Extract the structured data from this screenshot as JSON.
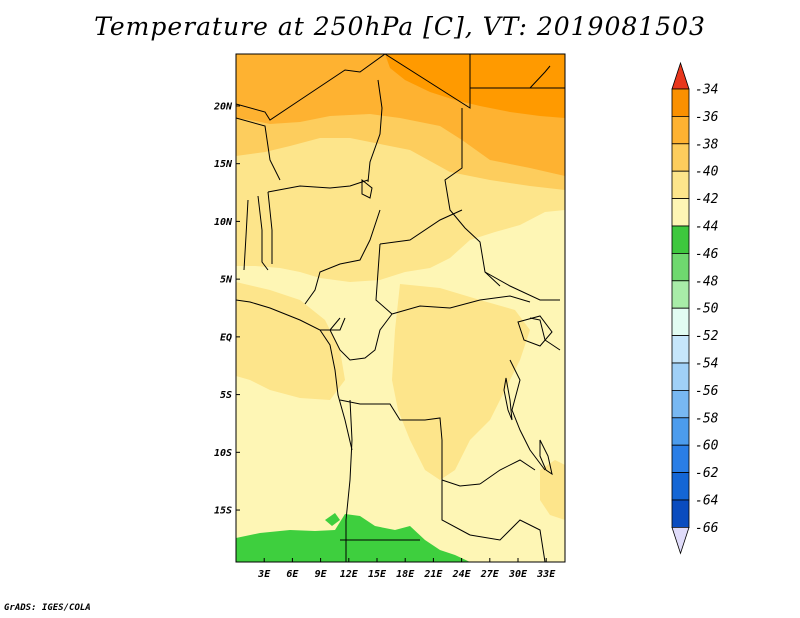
{
  "title": "Temperature at 250hPa [C], VT: 2019081503",
  "credit": "GrADS: IGES/COLA",
  "map": {
    "lon_range": [
      0,
      35
    ],
    "lat_range": [
      -19.5,
      24.5
    ],
    "lat_ticks": [
      {
        "lat": 20,
        "label": "20N"
      },
      {
        "lat": 15,
        "label": "15N"
      },
      {
        "lat": 10,
        "label": "10N"
      },
      {
        "lat": 5,
        "label": "5N"
      },
      {
        "lat": 0,
        "label": "EQ"
      },
      {
        "lat": -5,
        "label": "5S"
      },
      {
        "lat": -10,
        "label": "10S"
      },
      {
        "lat": -15,
        "label": "15S"
      }
    ],
    "lon_ticks": [
      {
        "lon": 3,
        "label": "3E"
      },
      {
        "lon": 6,
        "label": "6E"
      },
      {
        "lon": 9,
        "label": "9E"
      },
      {
        "lon": 12,
        "label": "12E"
      },
      {
        "lon": 15,
        "label": "15E"
      },
      {
        "lon": 18,
        "label": "18E"
      },
      {
        "lon": 21,
        "label": "21E"
      },
      {
        "lon": 24,
        "label": "24E"
      },
      {
        "lon": 27,
        "label": "27E"
      },
      {
        "lon": 30,
        "label": "30E"
      },
      {
        "lon": 33,
        "label": "33E"
      }
    ],
    "shading_colors": {
      "-36_to_-34": "#ff9a00",
      "-38_to_-36": "#feb231",
      "-40_to_-38": "#fdcd5d",
      "-42_to_-40": "#fde58b",
      "-44_to_-42": "#fef6b5",
      "-46_to_-44": "#3ecf3e"
    }
  },
  "colorbar": {
    "levels": [
      "-34",
      "-36",
      "-38",
      "-40",
      "-42",
      "-44",
      "-46",
      "-48",
      "-50",
      "-52",
      "-54",
      "-56",
      "-58",
      "-60",
      "-62",
      "-64",
      "-66"
    ],
    "colors": [
      "#f05c00",
      "#fa9000",
      "#feb231",
      "#fdcd5d",
      "#fde58b",
      "#fef6b5",
      "#3ec83e",
      "#6fd86f",
      "#a8eca8",
      "#e2fcf2",
      "#c6e6fb",
      "#a0d0f7",
      "#78b8f2",
      "#4c9ced",
      "#2a7ee6",
      "#1466d5",
      "#0a4cbf",
      "#0c1c7e"
    ],
    "top_arrow_color": "#e8361c",
    "bottom_arrow_color": "#e0dcfa"
  }
}
